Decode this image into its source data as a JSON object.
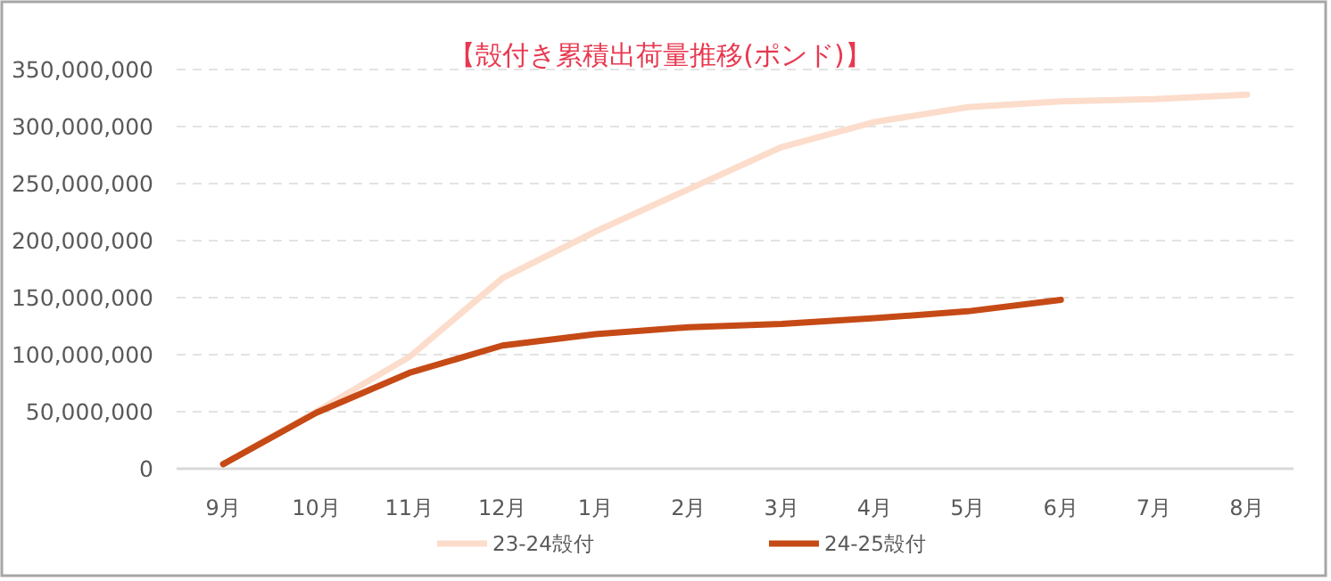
{
  "chart_data": {
    "type": "line",
    "title": "【殻付き累積出荷量推移(ポンド)】",
    "categories": [
      "9月",
      "10月",
      "11月",
      "12月",
      "1月",
      "2月",
      "3月",
      "4月",
      "5月",
      "6月",
      "7月",
      "8月"
    ],
    "series": [
      {
        "name": "23-24殻付",
        "color": "#fcdccb",
        "values": [
          4000000,
          50000000,
          98000000,
          167000000,
          208000000,
          245000000,
          282000000,
          304000000,
          317000000,
          322000000,
          324000000,
          328000000
        ]
      },
      {
        "name": "24-25殻付",
        "color": "#c54a16",
        "values": [
          4000000,
          49000000,
          84000000,
          108000000,
          118000000,
          124000000,
          127000000,
          132000000,
          138000000,
          148000000,
          null,
          null
        ]
      }
    ],
    "ylim": [
      0,
      350000000
    ],
    "yticks": [
      {
        "value": 0,
        "label": "0"
      },
      {
        "value": 50000000,
        "label": "50,000,000"
      },
      {
        "value": 100000000,
        "label": "100,000,000"
      },
      {
        "value": 150000000,
        "label": "150,000,000"
      },
      {
        "value": 200000000,
        "label": "200,000,000"
      },
      {
        "value": 250000000,
        "label": "250,000,000"
      },
      {
        "value": 300000000,
        "label": "300,000,000"
      },
      {
        "value": 350000000,
        "label": "350,000,000"
      }
    ],
    "grid": "y",
    "legend": "bottom",
    "marker": "none",
    "line_style": "solid"
  }
}
